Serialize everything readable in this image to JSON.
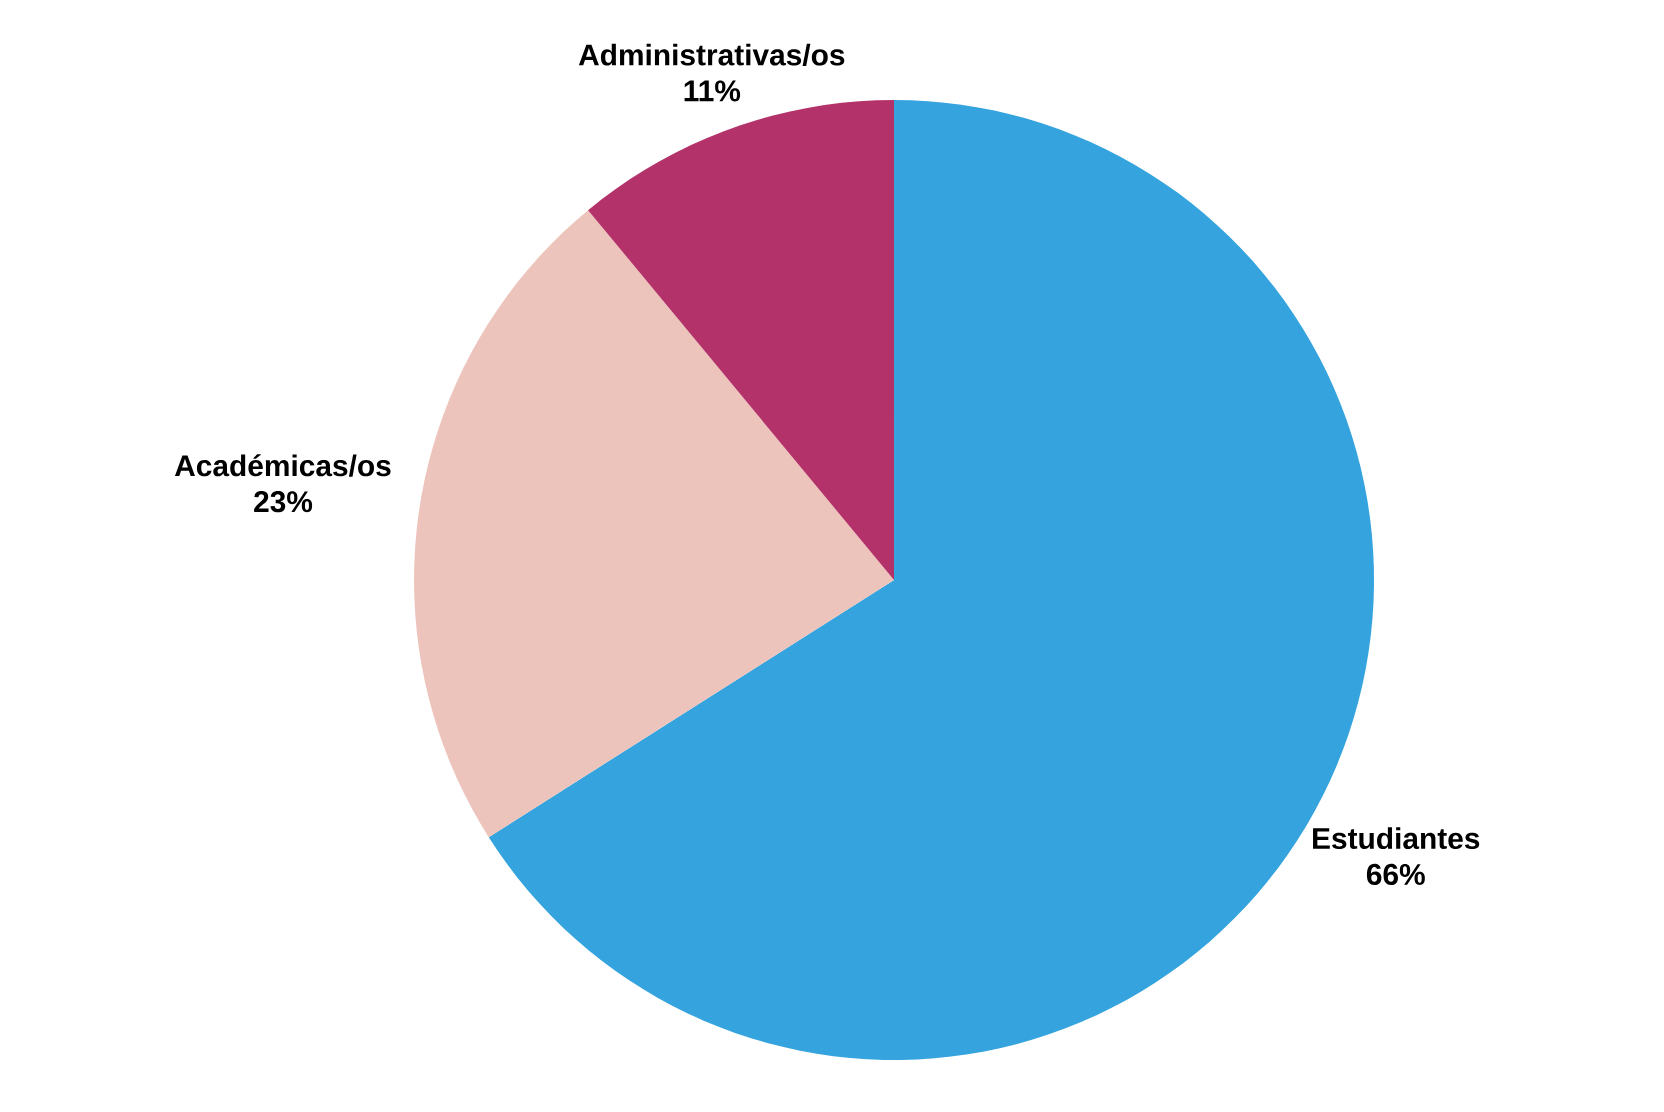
{
  "chart_data": {
    "type": "pie",
    "categories": [
      "Estudiantes",
      "Académicas/os",
      "Administrativas/os"
    ],
    "values": [
      66,
      23,
      11
    ],
    "value_labels": [
      "66%",
      "23%",
      "11%"
    ],
    "colors": [
      "#35a4de",
      "#edc4bc",
      "#b33269"
    ]
  }
}
